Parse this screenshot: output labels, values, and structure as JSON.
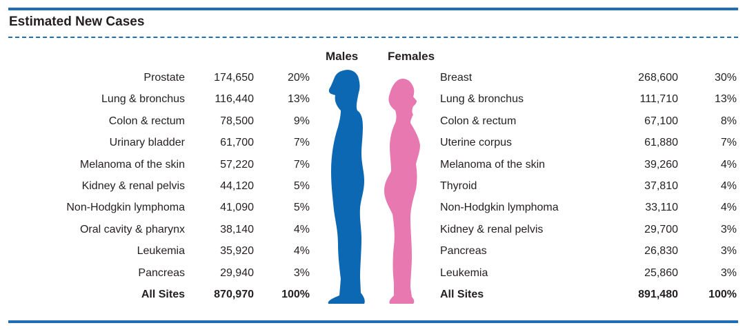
{
  "title": "Estimated New Cases",
  "headers": {
    "males": "Males",
    "females": "Females"
  },
  "colors": {
    "rule": "#1f6db5",
    "male_silhouette": "#0c68b3",
    "female_silhouette": "#e878b0"
  },
  "males": [
    {
      "site": "Prostate",
      "cases": "174,650",
      "pct": "20%"
    },
    {
      "site": "Lung & bronchus",
      "cases": "116,440",
      "pct": "13%"
    },
    {
      "site": "Colon & rectum",
      "cases": "78,500",
      "pct": "9%"
    },
    {
      "site": "Urinary bladder",
      "cases": "61,700",
      "pct": "7%"
    },
    {
      "site": "Melanoma of the skin",
      "cases": "57,220",
      "pct": "7%"
    },
    {
      "site": "Kidney & renal pelvis",
      "cases": "44,120",
      "pct": "5%"
    },
    {
      "site": "Non-Hodgkin lymphoma",
      "cases": "41,090",
      "pct": "5%"
    },
    {
      "site": "Oral cavity & pharynx",
      "cases": "38,140",
      "pct": "4%"
    },
    {
      "site": "Leukemia",
      "cases": "35,920",
      "pct": "4%"
    },
    {
      "site": "Pancreas",
      "cases": "29,940",
      "pct": "3%"
    }
  ],
  "males_total": {
    "site": "All Sites",
    "cases": "870,970",
    "pct": "100%"
  },
  "females": [
    {
      "site": "Breast",
      "cases": "268,600",
      "pct": "30%"
    },
    {
      "site": "Lung & bronchus",
      "cases": "111,710",
      "pct": "13%"
    },
    {
      "site": "Colon & rectum",
      "cases": "67,100",
      "pct": "8%"
    },
    {
      "site": "Uterine corpus",
      "cases": "61,880",
      "pct": "7%"
    },
    {
      "site": "Melanoma of the skin",
      "cases": "39,260",
      "pct": "4%"
    },
    {
      "site": "Thyroid",
      "cases": "37,810",
      "pct": "4%"
    },
    {
      "site": "Non-Hodgkin lymphoma",
      "cases": "33,110",
      "pct": "4%"
    },
    {
      "site": "Kidney & renal pelvis",
      "cases": "29,700",
      "pct": "3%"
    },
    {
      "site": "Pancreas",
      "cases": "26,830",
      "pct": "3%"
    },
    {
      "site": "Leukemia",
      "cases": "25,860",
      "pct": "3%"
    }
  ],
  "females_total": {
    "site": "All Sites",
    "cases": "891,480",
    "pct": "100%"
  }
}
